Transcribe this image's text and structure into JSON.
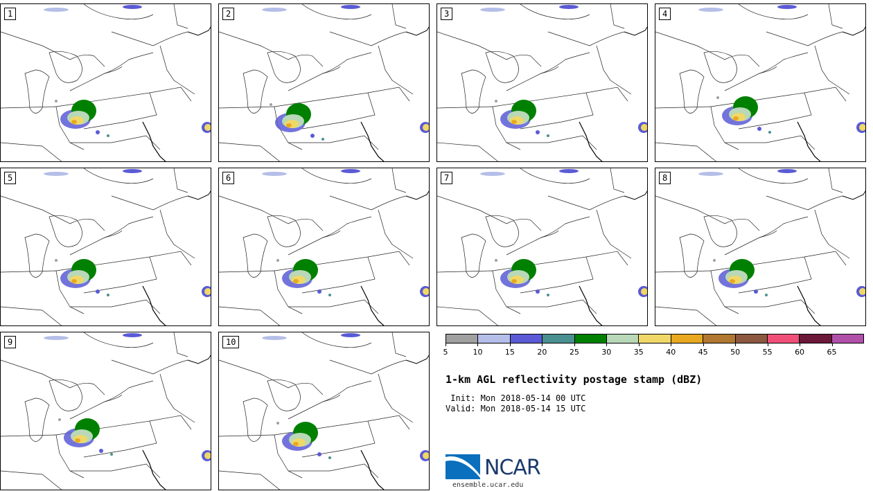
{
  "panels": [
    "1",
    "2",
    "3",
    "4",
    "5",
    "6",
    "7",
    "8",
    "9",
    "10"
  ],
  "colorbar": {
    "ticks": [
      "5",
      "10",
      "15",
      "20",
      "25",
      "30",
      "35",
      "40",
      "45",
      "50",
      "55",
      "60",
      "65"
    ],
    "colors": [
      "#a0a0a0",
      "#b4bee8",
      "#5a5ad6",
      "#4a9090",
      "#008000",
      "#b8d8b8",
      "#f0d868",
      "#e8a820",
      "#b07830",
      "#8c5840",
      "#f05078",
      "#6c1838",
      "#b050a8"
    ]
  },
  "title": "1-km AGL reflectivity postage stamp (dBZ)",
  "init": " Init: Mon 2018-05-14 00 UTC",
  "valid": "Valid: Mon 2018-05-14 15 UTC",
  "logo": {
    "text": "NCAR",
    "colors": {
      "blue": "#0a6fbd",
      "navy": "#1a3a6b"
    }
  },
  "url": "ensemble.ucar.edu"
}
